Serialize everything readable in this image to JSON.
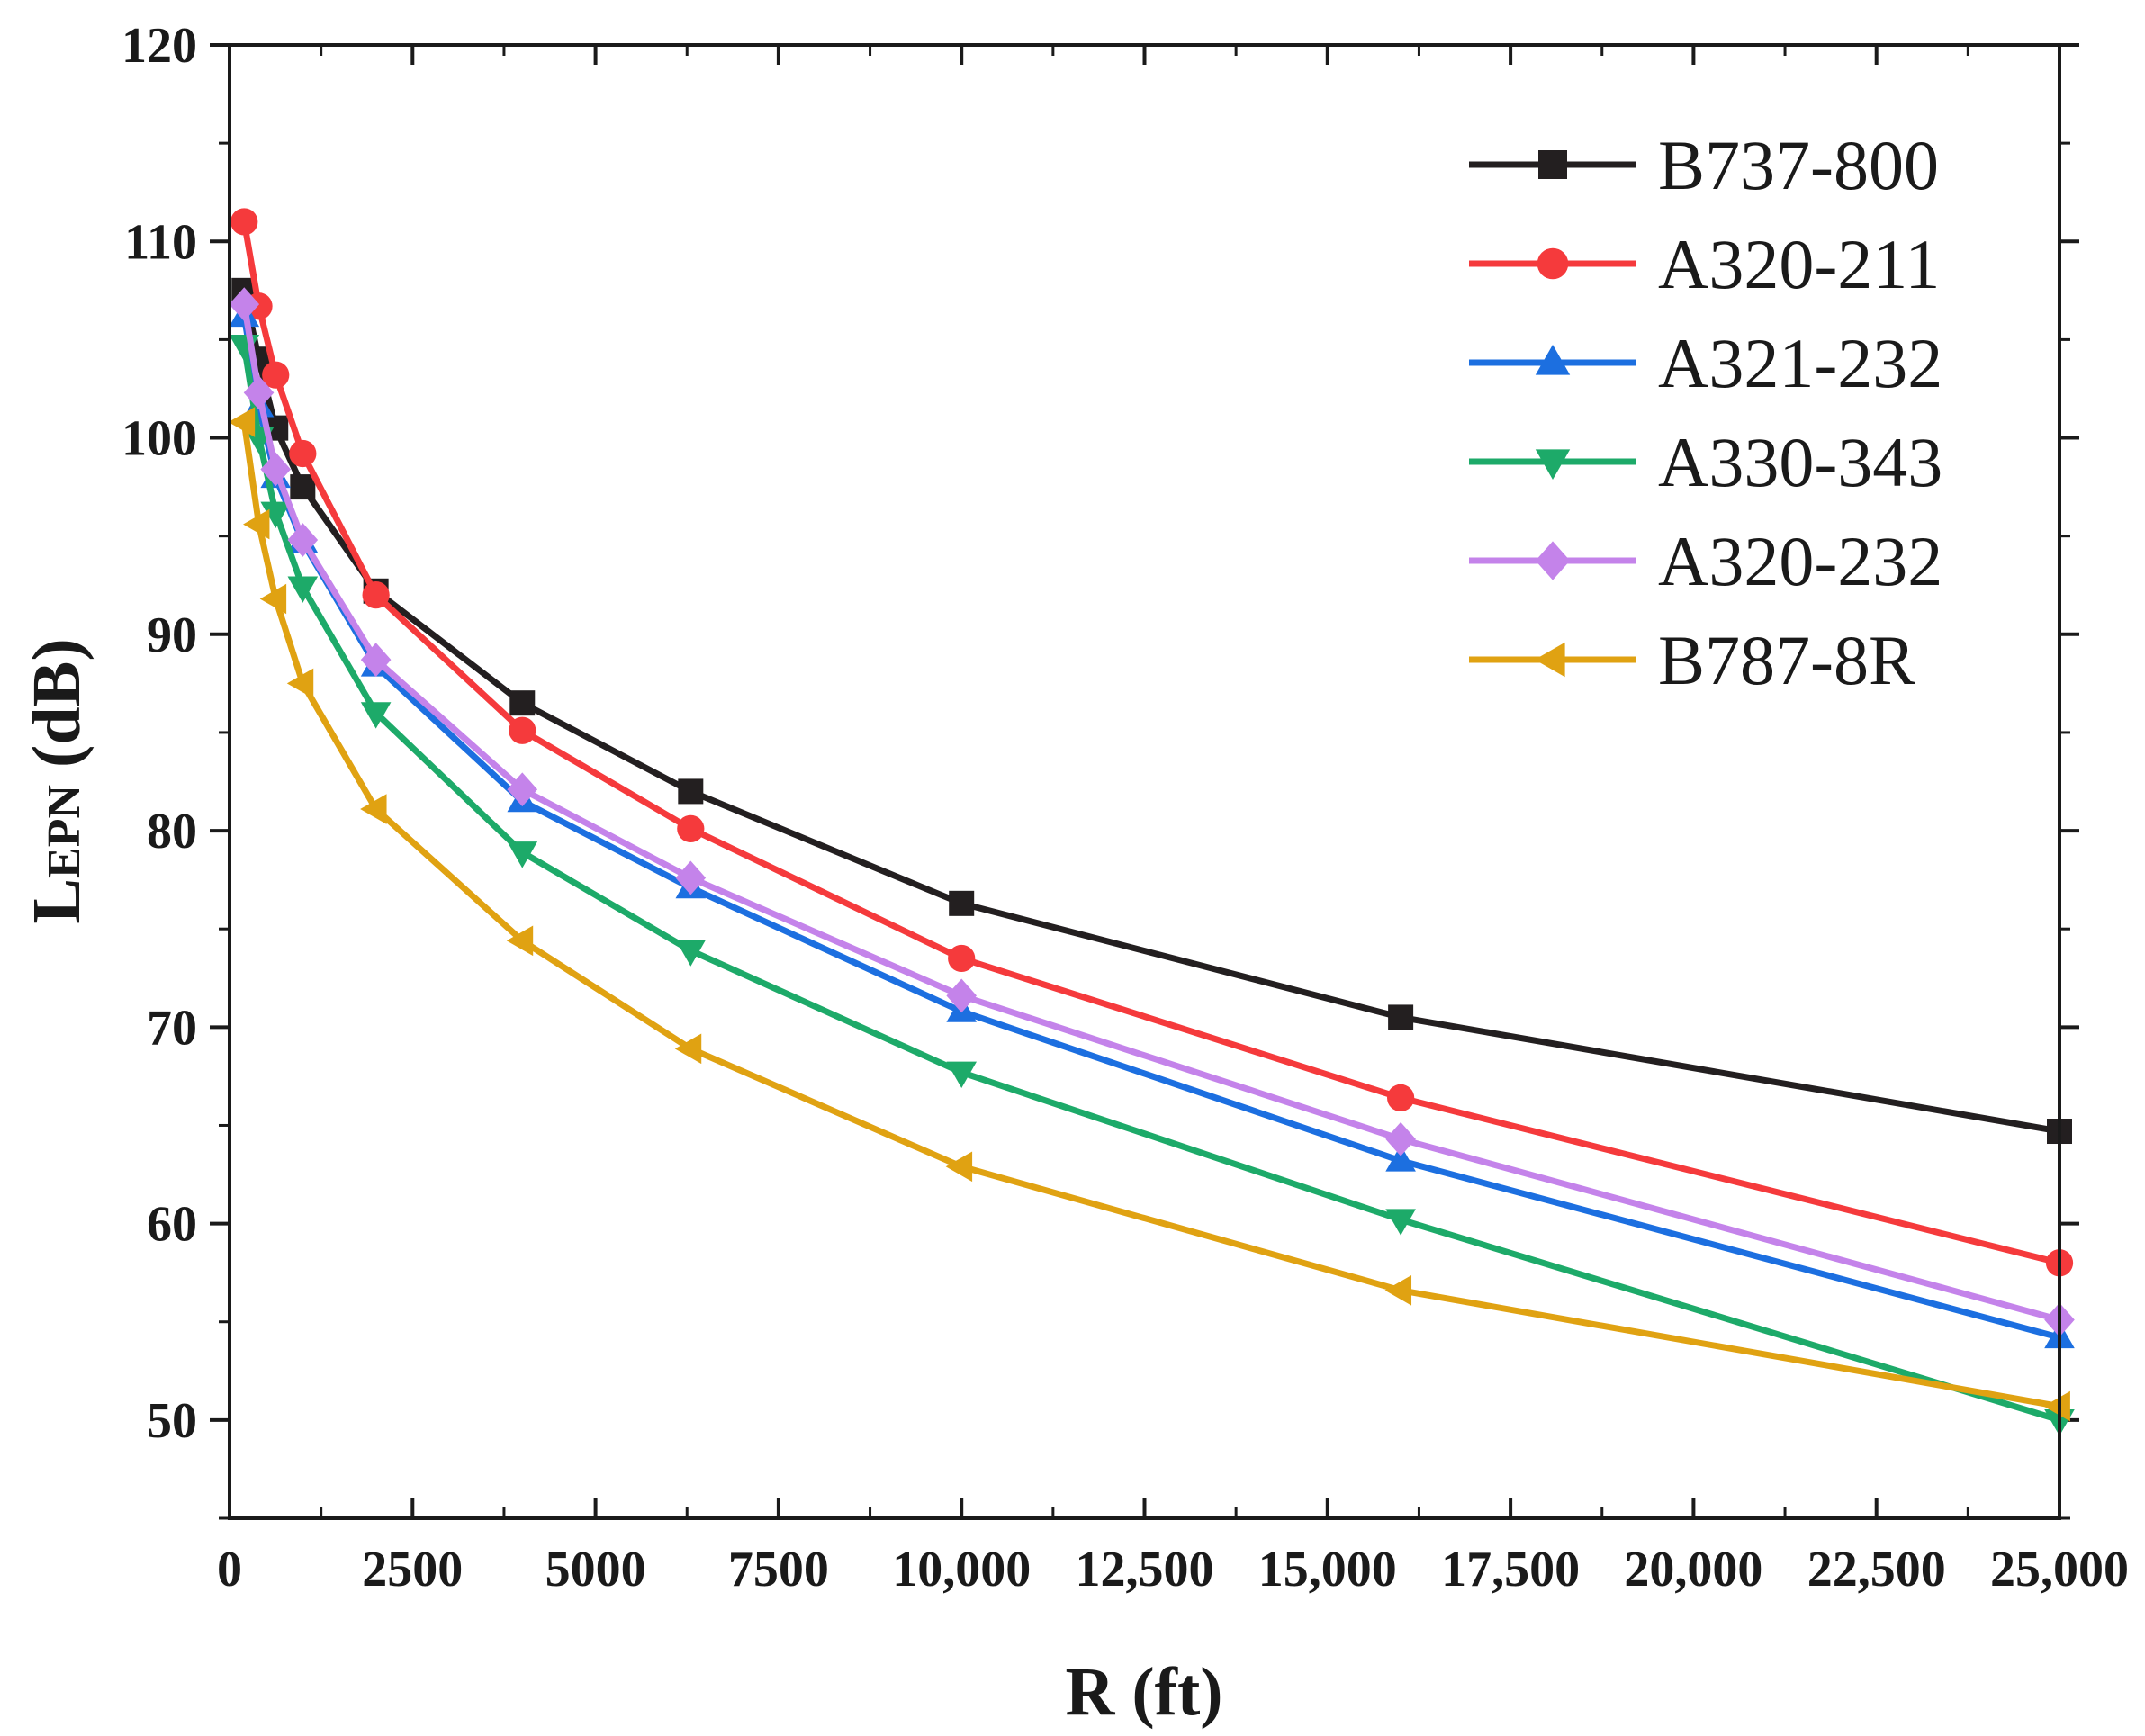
{
  "chart_data": {
    "type": "line",
    "title": "",
    "xlabel": "R (ft)",
    "ylabel": {
      "main": "L",
      "subscript": "EPN",
      "unit": " (dB)"
    },
    "xlim": [
      0,
      25000
    ],
    "ylim": [
      45,
      120
    ],
    "xticks": [
      0,
      2500,
      5000,
      7500,
      10000,
      12500,
      15000,
      17500,
      20000,
      22500,
      25000
    ],
    "xtick_labels": [
      "0",
      "2500",
      "5000",
      "7500",
      "10,000",
      "12,500",
      "15,000",
      "17,500",
      "20,000",
      "22,500",
      "25,000"
    ],
    "yticks": [
      50,
      60,
      70,
      80,
      90,
      100,
      110,
      120
    ],
    "ytick_labels": [
      "50",
      "60",
      "70",
      "80",
      "90",
      "100",
      "110",
      "120"
    ],
    "grid": false,
    "legend_position": "top-right",
    "x": [
      200,
      400,
      630,
      1000,
      2000,
      4000,
      6300,
      10000,
      16000,
      25000
    ],
    "series": [
      {
        "name": "B737-800",
        "color": "#231f20",
        "marker": "square",
        "values": [
          107.5,
          104.0,
          100.5,
          97.5,
          92.2,
          86.5,
          82.0,
          76.3,
          70.5,
          64.7
        ]
      },
      {
        "name": "A320-211",
        "color": "#f53a3c",
        "marker": "circle",
        "values": [
          111.0,
          106.7,
          103.2,
          99.2,
          92.0,
          85.1,
          80.1,
          73.5,
          66.4,
          58.0
        ]
      },
      {
        "name": "A321-232",
        "color": "#1c6fe0",
        "marker": "triangle-up",
        "values": [
          106.2,
          101.6,
          98.0,
          94.7,
          88.4,
          81.5,
          77.1,
          70.8,
          63.2,
          54.2
        ]
      },
      {
        "name": "A330-343",
        "color": "#1daa69",
        "marker": "triangle-down",
        "values": [
          104.7,
          100.0,
          96.2,
          92.4,
          86.0,
          78.9,
          73.9,
          67.7,
          60.2,
          50.0
        ]
      },
      {
        "name": "A320-232",
        "color": "#c483ea",
        "marker": "diamond",
        "values": [
          106.8,
          102.3,
          98.4,
          94.8,
          88.7,
          82.1,
          77.6,
          71.6,
          64.3,
          55.1
        ]
      },
      {
        "name": "B787-8R",
        "color": "#e0a212",
        "marker": "triangle-left",
        "values": [
          100.8,
          95.6,
          91.8,
          87.5,
          81.1,
          74.4,
          68.9,
          62.9,
          56.6,
          50.7
        ]
      }
    ]
  }
}
